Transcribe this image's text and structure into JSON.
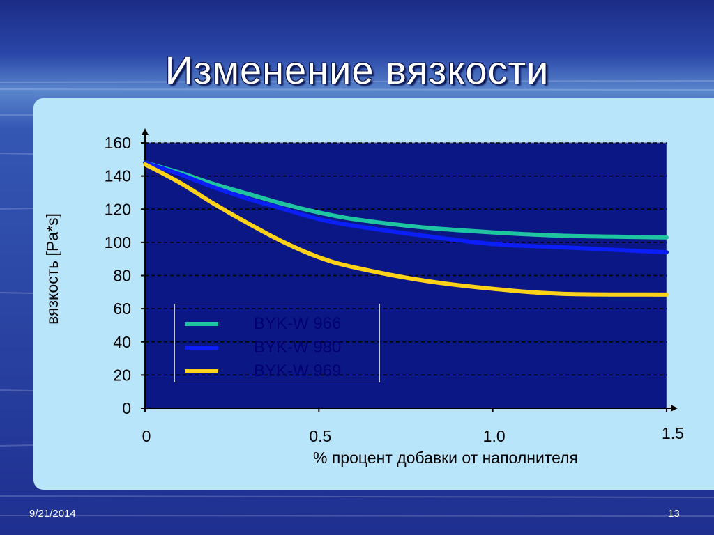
{
  "slide": {
    "title": "Изменение вязкости",
    "date": "9/21/2014",
    "page_number": "13"
  },
  "colors": {
    "plot_background": "#0b1785",
    "panel_background": "#b9e5fa",
    "axis": "#000000",
    "grid": "#000000"
  },
  "chart_data": {
    "type": "line",
    "title": "",
    "xlabel": "% процент добавки от наполнителя",
    "ylabel": "вязкость [Pa*s]",
    "xlim": [
      0,
      1.5
    ],
    "ylim": [
      0,
      160
    ],
    "x_ticks": [
      0,
      0.5,
      1.0,
      1.5
    ],
    "x_tick_labels": [
      "0",
      "0.5",
      "1.0",
      "1.5"
    ],
    "y_ticks": [
      0,
      20,
      40,
      60,
      80,
      100,
      120,
      140,
      160
    ],
    "y_tick_labels": [
      "0",
      "20",
      "40",
      "60",
      "80",
      "100",
      "120",
      "140",
      "160"
    ],
    "grid": "horizontal dashed",
    "legend_position": "lower-left inside plot",
    "series": [
      {
        "name": "BYK-W 966",
        "color": "#1fc4a0",
        "x": [
          0,
          0.1,
          0.2,
          0.3,
          0.4,
          0.5,
          0.6,
          0.8,
          1.0,
          1.2,
          1.5
        ],
        "y": [
          148,
          142,
          135,
          129,
          123,
          118,
          114,
          109,
          106,
          104,
          103
        ]
      },
      {
        "name": "BYK-W 980",
        "color": "#0a1ef5",
        "x": [
          0,
          0.1,
          0.2,
          0.3,
          0.4,
          0.5,
          0.6,
          0.8,
          1.0,
          1.2,
          1.5
        ],
        "y": [
          148,
          141,
          133,
          126,
          120,
          114,
          110,
          104,
          99,
          97,
          94
        ]
      },
      {
        "name": "BYK-W 969",
        "color": "#ffd21a",
        "x": [
          0,
          0.1,
          0.2,
          0.3,
          0.4,
          0.5,
          0.6,
          0.8,
          1.0,
          1.2,
          1.5
        ],
        "y": [
          147,
          136,
          123,
          111,
          100,
          91,
          85,
          77,
          72,
          69,
          68.5
        ]
      }
    ]
  }
}
